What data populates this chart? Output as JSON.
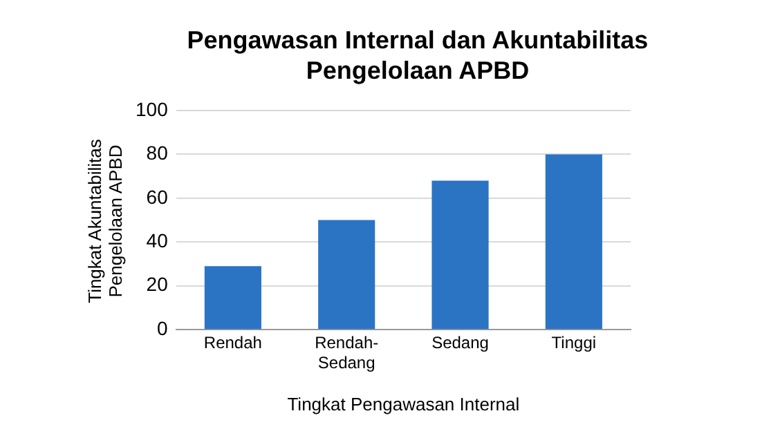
{
  "chart_data": {
    "type": "bar",
    "title": "Pengawasan Internal dan Akuntabilitas Pengelolaan APBD",
    "xlabel": "Tingkat Pengawasan Internal",
    "ylabel": "Tingkat Akuntabilitas Pengelolaan APBD",
    "categories": [
      "Rendah",
      "Rendah-Sedang",
      "Sedang",
      "Tinggi"
    ],
    "values": [
      29,
      50,
      68,
      80
    ],
    "color": "#2b74c4",
    "ylim": [
      0,
      100
    ],
    "yticks": [
      0,
      20,
      40,
      60,
      80,
      100
    ],
    "grid": "y",
    "legend": false
  }
}
